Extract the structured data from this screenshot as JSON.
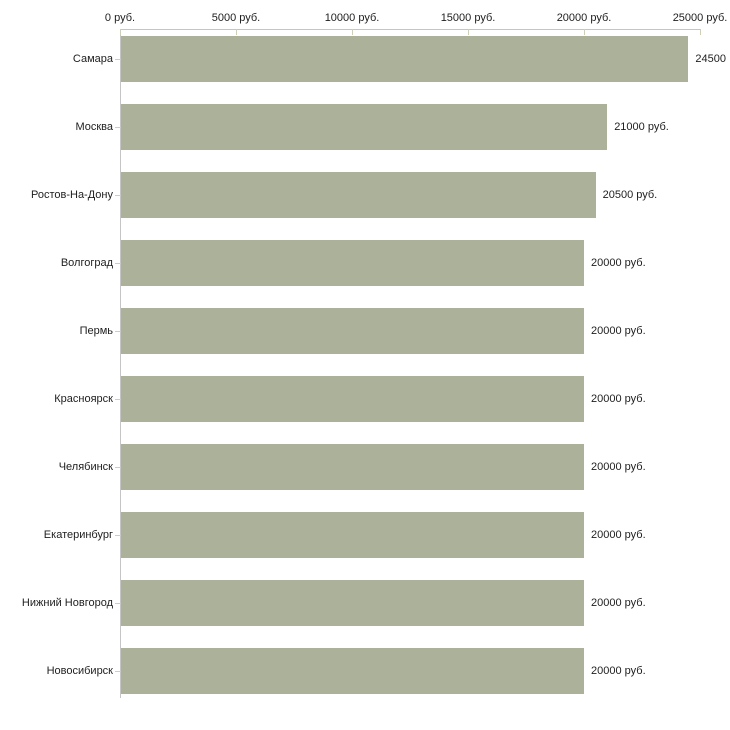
{
  "chart_data": {
    "type": "bar",
    "orientation": "horizontal",
    "title": "",
    "xlabel": "",
    "ylabel": "",
    "xlim": [
      0,
      25000
    ],
    "grid": false,
    "legend": "none",
    "categories": [
      "Самара",
      "Москва",
      "Ростов-На-Дону",
      "Волгоград",
      "Пермь",
      "Красноярск",
      "Челябинск",
      "Екатеринбург",
      "Нижний Новгород",
      "Новосибирск"
    ],
    "values": [
      24500,
      21000,
      20500,
      20000,
      20000,
      20000,
      20000,
      20000,
      20000,
      20000
    ],
    "value_labels": [
      "24500",
      "21000 руб.",
      "20500 руб.",
      "20000 руб.",
      "20000 руб.",
      "20000 руб.",
      "20000 руб.",
      "20000 руб.",
      "20000 руб.",
      "20000 руб."
    ],
    "x_ticks": [
      {
        "value": 0,
        "label": "0 руб."
      },
      {
        "value": 5000,
        "label": "5000 руб."
      },
      {
        "value": 10000,
        "label": "10000 руб."
      },
      {
        "value": 15000,
        "label": "15000 руб."
      },
      {
        "value": 20000,
        "label": "20000 руб."
      },
      {
        "value": 25000,
        "label": "25000 руб."
      }
    ],
    "colors": {
      "bar": "#acb299",
      "axis": "#c5c5c5",
      "tick": "#cfcfb8",
      "text": "#1e1e1e",
      "background": "#ffffff"
    }
  }
}
